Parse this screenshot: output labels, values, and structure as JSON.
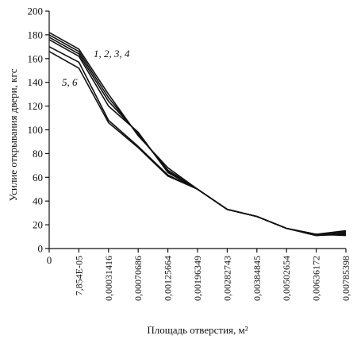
{
  "chart_data": {
    "type": "line",
    "title": "",
    "xlabel": "Площадь отверстия, м²",
    "ylabel": "Усилие открывания двери, кгс",
    "ylim": [
      0,
      200
    ],
    "yticks": [
      "0",
      "20",
      "40",
      "60",
      "80",
      "100",
      "120",
      "140",
      "160",
      "180",
      "200"
    ],
    "categories": [
      "0",
      "7,854E-05",
      "0,00031416",
      "0,00070686",
      "0,00125664",
      "0,00196349",
      "0,00282743",
      "0,00384845",
      "0,00502654",
      "0,00636172",
      "0,00785398"
    ],
    "grid": false,
    "legend": "none",
    "series": [
      {
        "values": [
          182,
          168,
          130,
          95,
          68,
          50,
          33,
          27,
          17,
          12,
          15
        ]
      },
      {
        "values": [
          180,
          166,
          127,
          96,
          66,
          50,
          33,
          27,
          17,
          12,
          14
        ]
      },
      {
        "values": [
          178,
          164,
          124,
          97,
          65,
          50,
          33,
          27,
          17,
          11,
          13
        ]
      },
      {
        "values": [
          176,
          162,
          120,
          98,
          64,
          50,
          33,
          27,
          17,
          11,
          12
        ]
      },
      {
        "values": [
          170,
          157,
          108,
          86,
          62,
          50,
          33,
          27,
          17,
          12,
          12
        ]
      },
      {
        "values": [
          166,
          152,
          106,
          85,
          61,
          50,
          33,
          27,
          17,
          12,
          11
        ]
      }
    ],
    "annotations": [
      {
        "text": "1, 2, 3, 4"
      },
      {
        "text": "5, 6"
      }
    ]
  }
}
